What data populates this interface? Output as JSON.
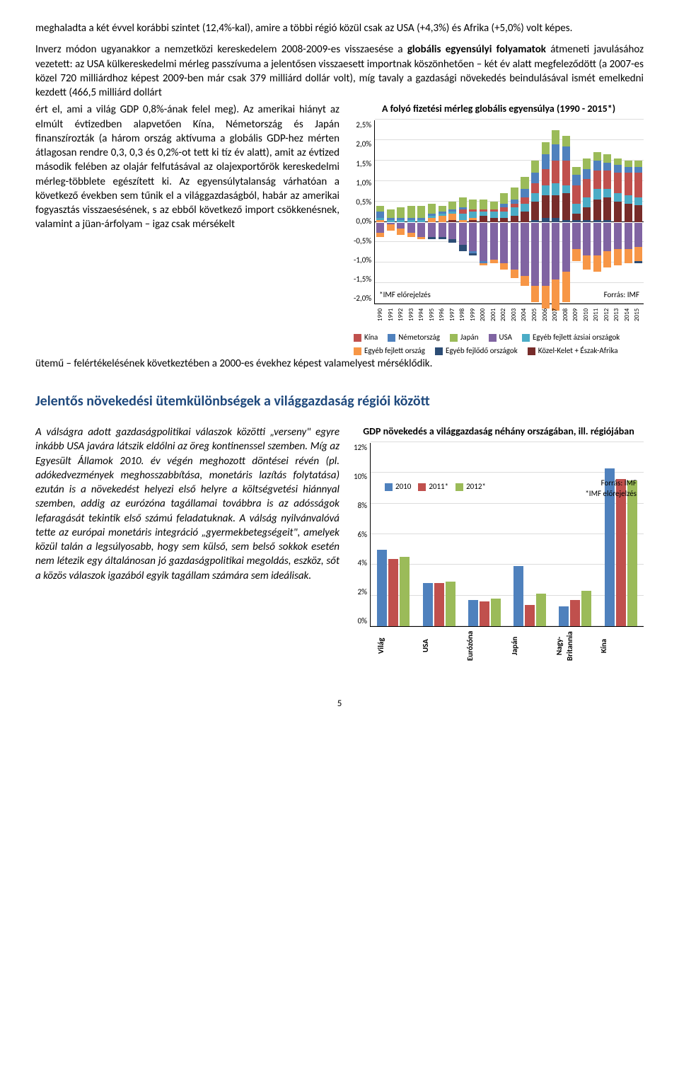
{
  "intro": "meghaladta a két évvel korábbi szintet (12,4%-kal), amire a többi régió közül csak az USA (+4,3%) és Afrika (+5,0%) volt képes.",
  "para2_a": "Inverz módon ugyanakkor a nemzetközi kereskedelem 2008-2009-es visszaesése a ",
  "para2_bold": "globális egyensúlyi folyamatok",
  "para2_b": " átmeneti javulásához vezetett: az USA külkereskedelmi mérleg passzívuma a jelentősen visszaesett importnak köszönhetően – két év alatt megfeleződött (a 2007-es közel 720 milliárdhoz képest 2009-ben már csak 379 milliárd dollár volt), míg tavaly a gazdasági növekedés beindulásával ismét emelkedni kezdett (466,5 milliárd dollárt ért el, ami a világ GDP 0,8%-ának felel meg). Az amerikai hiányt az elmúlt évtizedben alapvetően Kína, Németország és Japán finanszírozták (a három ország aktívuma a globális GDP-hez mérten átlagosan rendre 0,3, 0,3 és 0,2%-ot tett ki tíz év alatt), amit az évtized második felében az olajár felfutásával az olajexportőrök kereskedelmi mérleg-többlete egészített ki. Az egyensúlytalanság várhatóan a következő években sem tűnik el a világgazdaságból, habár az amerikai fogyasztás visszaesésének, s az ebből következő import csökkenésnek, valamint a jüan-árfolyam – igaz csak mérsékelt ütemű – felértékelésének következtében a 2000-es évekhez képest valamelyest mérséklődik.",
  "chart1": {
    "title": "A folyó fizetési mérleg globális egyensúlya (1990 - 2015*)",
    "ylim": [
      -2.0,
      2.5
    ],
    "ytick_step": 0.5,
    "yticks": [
      "2,5%",
      "2,0%",
      "1,5%",
      "1,0%",
      "0,5%",
      "0,0%",
      "-0,5%",
      "-1,0%",
      "-1,5%",
      "-2,0%"
    ],
    "years": [
      "1990",
      "1991",
      "1992",
      "1993",
      "1994",
      "1995",
      "1996",
      "1997",
      "1998",
      "1999",
      "2000",
      "2001",
      "2002",
      "2003",
      "2004",
      "2005",
      "2006",
      "2007",
      "2008",
      "2009",
      "2010",
      "2011",
      "2012",
      "2013",
      "2014",
      "2015"
    ],
    "series_colors": {
      "kina": "#c0504d",
      "nemet": "#4f81bd",
      "japan": "#9bbb59",
      "usa": "#8064a2",
      "azsiai": "#4bacc6",
      "fejlett": "#f79646",
      "fejlodo": "#2c4d75",
      "kk": "#772c2a"
    },
    "note_left": "*IMF előrejelzés",
    "note_right": "Forrás: IMF",
    "legend": [
      {
        "c": "#c0504d",
        "t": "Kína"
      },
      {
        "c": "#4f81bd",
        "t": "Németország"
      },
      {
        "c": "#9bbb59",
        "t": "Japán"
      },
      {
        "c": "#8064a2",
        "t": "USA"
      },
      {
        "c": "#4bacc6",
        "t": "Egyéb fejlett ázsiai országok"
      },
      {
        "c": "#f79646",
        "t": "Egyéb fejlett ország"
      },
      {
        "c": "#2c4d75",
        "t": "Egyéb fejlődő országok"
      },
      {
        "c": "#772c2a",
        "t": "Közel-Kelet + Észak-Afrika"
      }
    ],
    "data": [
      {
        "pos": [
          [
            "#9bbb59",
            0.15
          ],
          [
            "#4f81bd",
            0.15
          ],
          [
            "#4bacc6",
            0.05
          ],
          [
            "#f79646",
            0.05
          ]
        ],
        "neg": [
          [
            "#8064a2",
            0.25
          ],
          [
            "#f79646",
            0.1
          ]
        ]
      },
      {
        "pos": [
          [
            "#9bbb59",
            0.2
          ],
          [
            "#4f81bd",
            0.05
          ],
          [
            "#4bacc6",
            0.05
          ]
        ],
        "neg": [
          [
            "#8064a2",
            0.05
          ],
          [
            "#f79646",
            0.15
          ]
        ]
      },
      {
        "pos": [
          [
            "#9bbb59",
            0.25
          ],
          [
            "#4f81bd",
            0.05
          ],
          [
            "#4bacc6",
            0.05
          ]
        ],
        "neg": [
          [
            "#8064a2",
            0.15
          ],
          [
            "#f79646",
            0.15
          ]
        ]
      },
      {
        "pos": [
          [
            "#9bbb59",
            0.3
          ],
          [
            "#4f81bd",
            0.05
          ],
          [
            "#4bacc6",
            0.05
          ]
        ],
        "neg": [
          [
            "#8064a2",
            0.25
          ],
          [
            "#f79646",
            0.1
          ]
        ]
      },
      {
        "pos": [
          [
            "#9bbb59",
            0.3
          ],
          [
            "#4f81bd",
            0.05
          ],
          [
            "#4bacc6",
            0.05
          ]
        ],
        "neg": [
          [
            "#8064a2",
            0.35
          ],
          [
            "#f79646",
            0.05
          ]
        ]
      },
      {
        "pos": [
          [
            "#9bbb59",
            0.25
          ],
          [
            "#4f81bd",
            0.05
          ],
          [
            "#4bacc6",
            0.05
          ],
          [
            "#f79646",
            0.1
          ]
        ],
        "neg": [
          [
            "#8064a2",
            0.35
          ],
          [
            "#2c4d75",
            0.05
          ]
        ]
      },
      {
        "pos": [
          [
            "#9bbb59",
            0.15
          ],
          [
            "#4f81bd",
            0.05
          ],
          [
            "#4bacc6",
            0.05
          ],
          [
            "#f79646",
            0.15
          ]
        ],
        "neg": [
          [
            "#8064a2",
            0.35
          ],
          [
            "#2c4d75",
            0.05
          ]
        ]
      },
      {
        "pos": [
          [
            "#9bbb59",
            0.2
          ],
          [
            "#4f81bd",
            0.05
          ],
          [
            "#4bacc6",
            0.05
          ],
          [
            "#f79646",
            0.15
          ],
          [
            "#772c2a",
            0.05
          ]
        ],
        "neg": [
          [
            "#8064a2",
            0.4
          ],
          [
            "#2c4d75",
            0.1
          ]
        ]
      },
      {
        "pos": [
          [
            "#9bbb59",
            0.25
          ],
          [
            "#4f81bd",
            0.05
          ],
          [
            "#c0504d",
            0.1
          ],
          [
            "#4bacc6",
            0.15
          ],
          [
            "#f79646",
            0.05
          ]
        ],
        "neg": [
          [
            "#8064a2",
            0.55
          ],
          [
            "#2c4d75",
            0.15
          ]
        ]
      },
      {
        "pos": [
          [
            "#9bbb59",
            0.25
          ],
          [
            "#c0504d",
            0.05
          ],
          [
            "#4bacc6",
            0.15
          ],
          [
            "#f79646",
            0.05
          ],
          [
            "#772c2a",
            0.05
          ]
        ],
        "neg": [
          [
            "#8064a2",
            0.7
          ],
          [
            "#4f81bd",
            0.05
          ],
          [
            "#2c4d75",
            0.05
          ]
        ]
      },
      {
        "pos": [
          [
            "#9bbb59",
            0.25
          ],
          [
            "#c0504d",
            0.05
          ],
          [
            "#4bacc6",
            0.1
          ],
          [
            "#772c2a",
            0.15
          ]
        ],
        "neg": [
          [
            "#8064a2",
            0.95
          ],
          [
            "#4f81bd",
            0.05
          ],
          [
            "#f79646",
            0.05
          ]
        ]
      },
      {
        "pos": [
          [
            "#9bbb59",
            0.2
          ],
          [
            "#c0504d",
            0.05
          ],
          [
            "#4bacc6",
            0.15
          ],
          [
            "#772c2a",
            0.1
          ]
        ],
        "neg": [
          [
            "#8064a2",
            0.9
          ],
          [
            "#f79646",
            0.1
          ]
        ]
      },
      {
        "pos": [
          [
            "#9bbb59",
            0.25
          ],
          [
            "#4f81bd",
            0.1
          ],
          [
            "#c0504d",
            0.1
          ],
          [
            "#4bacc6",
            0.15
          ],
          [
            "#772c2a",
            0.1
          ]
        ],
        "neg": [
          [
            "#8064a2",
            1.0
          ],
          [
            "#f79646",
            0.15
          ]
        ]
      },
      {
        "pos": [
          [
            "#9bbb59",
            0.3
          ],
          [
            "#4f81bd",
            0.1
          ],
          [
            "#c0504d",
            0.1
          ],
          [
            "#4bacc6",
            0.2
          ],
          [
            "#772c2a",
            0.15
          ]
        ],
        "neg": [
          [
            "#8064a2",
            1.15
          ],
          [
            "#f79646",
            0.2
          ]
        ]
      },
      {
        "pos": [
          [
            "#9bbb59",
            0.3
          ],
          [
            "#4f81bd",
            0.2
          ],
          [
            "#c0504d",
            0.15
          ],
          [
            "#4bacc6",
            0.2
          ],
          [
            "#772c2a",
            0.25
          ]
        ],
        "neg": [
          [
            "#8064a2",
            1.3
          ],
          [
            "#f79646",
            0.25
          ]
        ]
      },
      {
        "pos": [
          [
            "#9bbb59",
            0.3
          ],
          [
            "#4f81bd",
            0.25
          ],
          [
            "#c0504d",
            0.25
          ],
          [
            "#4bacc6",
            0.2
          ],
          [
            "#772c2a",
            0.45
          ],
          [
            "#2c4d75",
            0.05
          ]
        ],
        "neg": [
          [
            "#8064a2",
            1.55
          ],
          [
            "#f79646",
            0.4
          ]
        ]
      },
      {
        "pos": [
          [
            "#9bbb59",
            0.3
          ],
          [
            "#4f81bd",
            0.35
          ],
          [
            "#c0504d",
            0.4
          ],
          [
            "#4bacc6",
            0.25
          ],
          [
            "#772c2a",
            0.55
          ],
          [
            "#2c4d75",
            0.1
          ]
        ],
        "neg": [
          [
            "#8064a2",
            1.55
          ],
          [
            "#f79646",
            0.55
          ]
        ]
      },
      {
        "pos": [
          [
            "#9bbb59",
            0.35
          ],
          [
            "#4f81bd",
            0.4
          ],
          [
            "#c0504d",
            0.55
          ],
          [
            "#4bacc6",
            0.3
          ],
          [
            "#772c2a",
            0.55
          ],
          [
            "#2c4d75",
            0.1
          ]
        ],
        "neg": [
          [
            "#8064a2",
            1.4
          ],
          [
            "#f79646",
            0.75
          ]
        ]
      },
      {
        "pos": [
          [
            "#9bbb59",
            0.25
          ],
          [
            "#4f81bd",
            0.35
          ],
          [
            "#c0504d",
            0.6
          ],
          [
            "#4bacc6",
            0.2
          ],
          [
            "#772c2a",
            0.65
          ],
          [
            "#2c4d75",
            0.05
          ]
        ],
        "neg": [
          [
            "#8064a2",
            1.2
          ],
          [
            "#f79646",
            0.75
          ]
        ]
      },
      {
        "pos": [
          [
            "#9bbb59",
            0.2
          ],
          [
            "#4f81bd",
            0.25
          ],
          [
            "#c0504d",
            0.45
          ],
          [
            "#4bacc6",
            0.25
          ],
          [
            "#772c2a",
            0.15
          ],
          [
            "#2c4d75",
            0.05
          ]
        ],
        "neg": [
          [
            "#8064a2",
            0.65
          ],
          [
            "#f79646",
            0.3
          ]
        ]
      },
      {
        "pos": [
          [
            "#9bbb59",
            0.25
          ],
          [
            "#4f81bd",
            0.25
          ],
          [
            "#c0504d",
            0.45
          ],
          [
            "#4bacc6",
            0.25
          ],
          [
            "#772c2a",
            0.3
          ],
          [
            "#2c4d75",
            0.05
          ]
        ],
        "neg": [
          [
            "#8064a2",
            0.8
          ],
          [
            "#f79646",
            0.35
          ]
        ]
      },
      {
        "pos": [
          [
            "#9bbb59",
            0.2
          ],
          [
            "#4f81bd",
            0.25
          ],
          [
            "#c0504d",
            0.45
          ],
          [
            "#4bacc6",
            0.25
          ],
          [
            "#772c2a",
            0.5
          ],
          [
            "#2c4d75",
            0.05
          ]
        ],
        "neg": [
          [
            "#8064a2",
            0.8
          ],
          [
            "#f79646",
            0.4
          ]
        ]
      },
      {
        "pos": [
          [
            "#9bbb59",
            0.2
          ],
          [
            "#4f81bd",
            0.2
          ],
          [
            "#c0504d",
            0.45
          ],
          [
            "#4bacc6",
            0.2
          ],
          [
            "#772c2a",
            0.55
          ],
          [
            "#2c4d75",
            0.05
          ]
        ],
        "neg": [
          [
            "#8064a2",
            0.7
          ],
          [
            "#f79646",
            0.4
          ]
        ]
      },
      {
        "pos": [
          [
            "#9bbb59",
            0.15
          ],
          [
            "#4f81bd",
            0.2
          ],
          [
            "#c0504d",
            0.5
          ],
          [
            "#4bacc6",
            0.2
          ],
          [
            "#772c2a",
            0.5
          ]
        ],
        "neg": [
          [
            "#8064a2",
            0.65
          ],
          [
            "#f79646",
            0.4
          ]
        ]
      },
      {
        "pos": [
          [
            "#9bbb59",
            0.15
          ],
          [
            "#4f81bd",
            0.15
          ],
          [
            "#c0504d",
            0.55
          ],
          [
            "#4bacc6",
            0.2
          ],
          [
            "#772c2a",
            0.45
          ]
        ],
        "neg": [
          [
            "#8064a2",
            0.65
          ],
          [
            "#f79646",
            0.35
          ]
        ]
      },
      {
        "pos": [
          [
            "#9bbb59",
            0.15
          ],
          [
            "#4f81bd",
            0.15
          ],
          [
            "#c0504d",
            0.6
          ],
          [
            "#4bacc6",
            0.2
          ],
          [
            "#772c2a",
            0.4
          ]
        ],
        "neg": [
          [
            "#8064a2",
            0.6
          ],
          [
            "#f79646",
            0.35
          ],
          [
            "#2c4d75",
            0.05
          ]
        ]
      }
    ]
  },
  "section_title": "Jelentős növekedési ütemkülönbségek a világgazdaság régiói között",
  "para3": "A válságra adott gazdaságpolitikai válaszok közötti „verseny\" egyre inkább USA javára látszik eldőlni az öreg kontinenssel szemben. Míg az Egyesült Államok 2010. év végén meghozott döntései révén (pl. adókedvezmények meghosszabbítása, monetáris lazítás folytatása) ezután is a növekedést helyezi első helyre a költségvetési hiánnyal szemben, addig az eurózóna tagállamai továbbra is az adósságok lefaragását tekintik első számú feladatuknak. A válság nyilvánvalóvá tette az európai monetáris integráció „gyermekbetegségeit\", amelyek közül talán a legsúlyosabb, hogy sem külső, sem belső sokkok esetén nem létezik egy általánosan jó gazdaságpolitikai megoldás, eszköz, sőt a közös válaszok igazából egyik tagállam számára sem ideálisak.",
  "chart2": {
    "title": "GDP növekedés a világgazdaság néhány országában, ill. régiójában",
    "ylim": [
      0,
      12
    ],
    "ytick_step": 2,
    "yticks": [
      "12%",
      "10%",
      "8%",
      "6%",
      "4%",
      "2%",
      "0%"
    ],
    "categories": [
      "Világ",
      "USA",
      "Eurózóna",
      "Japán",
      "Nagy-Britannia",
      "Kína"
    ],
    "series": [
      {
        "label": "2010",
        "color": "#4f81bd"
      },
      {
        "label": "2011*",
        "color": "#c0504d"
      },
      {
        "label": "2012*",
        "color": "#9bbb59"
      }
    ],
    "values": [
      [
        5.0,
        4.4,
        4.5
      ],
      [
        2.8,
        2.8,
        2.9
      ],
      [
        1.7,
        1.6,
        1.8
      ],
      [
        3.9,
        1.4,
        2.1
      ],
      [
        1.3,
        1.7,
        2.3
      ],
      [
        10.3,
        9.6,
        9.5
      ]
    ],
    "src_top": "Forrás: IMF",
    "src_bot": "*IMF előrejelzés"
  },
  "page_num": "5"
}
